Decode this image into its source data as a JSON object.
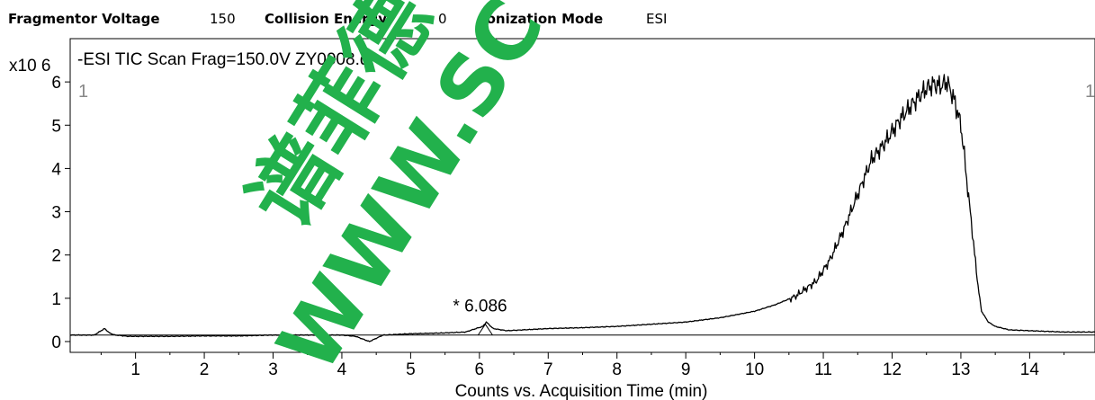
{
  "header": {
    "params": [
      {
        "label": "Fragmentor Voltage",
        "value": "150"
      },
      {
        "label": "Collision Energy",
        "value": "0"
      },
      {
        "label": "Ionization Mode",
        "value": "ESI"
      }
    ]
  },
  "watermark": {
    "text_vertical": "谱菲德",
    "text_url": "WWW.SC"
  },
  "chart_data": {
    "type": "line",
    "title": "-ESI TIC Scan Frag=150.0V ZY0008.d",
    "scale_label": "x10 6",
    "trace_index_left": "1",
    "trace_index_right": "1",
    "xlabel": "Counts vs. Acquisition Time (min)",
    "ylabel": "",
    "xlim": [
      0.05,
      14.95
    ],
    "ylim": [
      -0.25,
      7.0
    ],
    "x_ticks": [
      1,
      2,
      3,
      4,
      5,
      6,
      7,
      8,
      9,
      10,
      11,
      12,
      13,
      14
    ],
    "y_ticks": [
      0,
      1,
      2,
      3,
      4,
      5,
      6
    ],
    "baseline_y": 0.15,
    "annotation": {
      "text": "* 6.086",
      "x": 6.086,
      "y": 0.4
    },
    "series": [
      {
        "x": [
          0.05,
          0.4,
          0.5,
          0.55,
          0.62,
          0.7,
          0.9,
          1.5,
          2.0,
          2.5,
          3.0,
          3.5,
          4.0,
          4.2,
          4.4,
          4.6,
          5.0,
          5.5,
          5.8,
          5.95,
          6.05,
          6.1,
          6.2,
          6.4,
          7.0,
          7.5,
          8.0,
          8.5,
          9.0,
          9.5,
          10.0,
          10.3,
          10.6,
          10.9,
          11.1,
          11.3,
          11.5,
          11.7,
          11.9,
          12.1,
          12.3,
          12.5,
          12.6,
          12.7,
          12.8,
          12.9,
          12.95,
          13.0,
          13.05,
          13.1,
          13.15,
          13.2,
          13.25,
          13.3,
          13.4,
          13.5,
          13.7,
          14.0,
          14.5,
          14.95
        ],
        "y": [
          0.15,
          0.15,
          0.25,
          0.3,
          0.2,
          0.15,
          0.12,
          0.12,
          0.13,
          0.13,
          0.15,
          0.15,
          0.15,
          0.12,
          0.0,
          0.15,
          0.18,
          0.2,
          0.22,
          0.3,
          0.35,
          0.45,
          0.3,
          0.25,
          0.3,
          0.32,
          0.35,
          0.4,
          0.45,
          0.55,
          0.7,
          0.85,
          1.05,
          1.4,
          1.9,
          2.6,
          3.4,
          4.2,
          4.6,
          5.1,
          5.5,
          5.85,
          5.95,
          5.9,
          6.0,
          5.6,
          5.3,
          5.0,
          4.3,
          3.5,
          2.8,
          2.0,
          1.3,
          0.7,
          0.45,
          0.35,
          0.27,
          0.25,
          0.22,
          0.22
        ]
      }
    ]
  }
}
